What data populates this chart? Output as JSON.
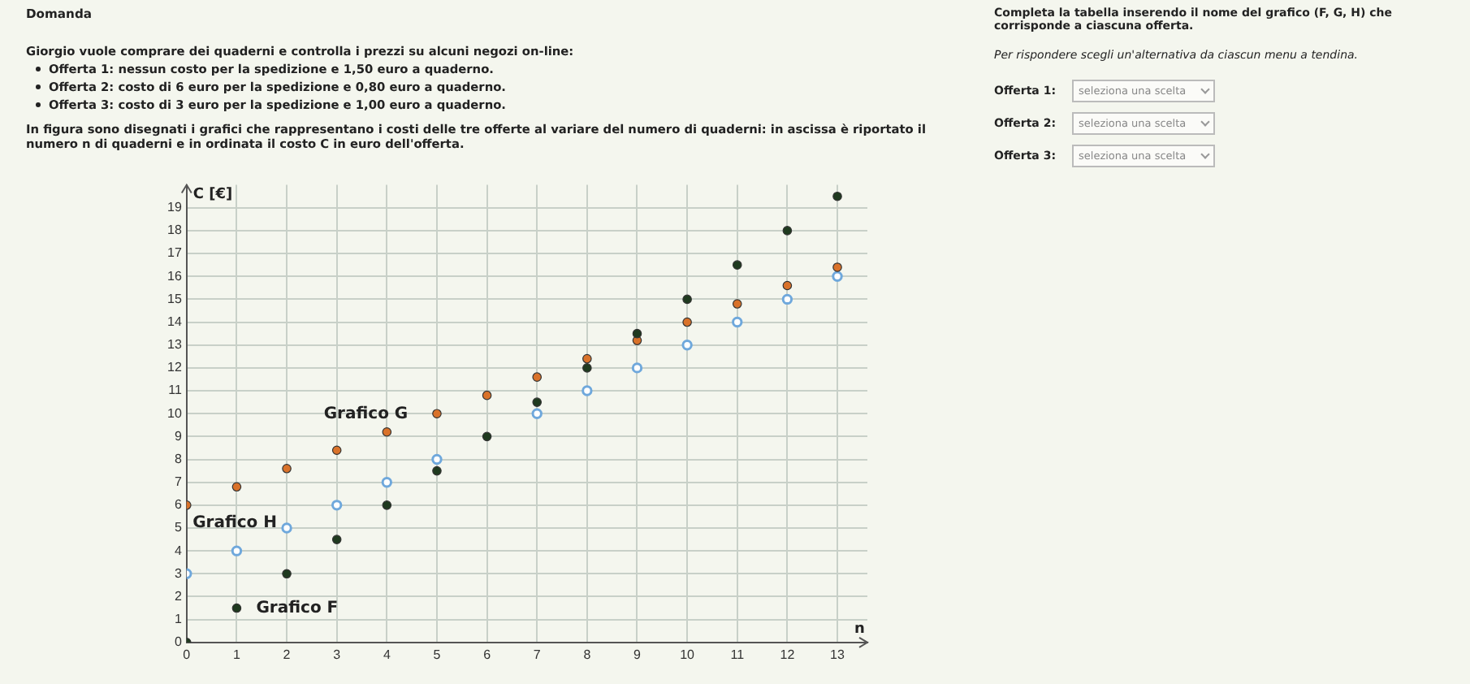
{
  "chart_data": {
    "type": "scatter",
    "title": "Domanda",
    "annotations": [
      "Giorgio vuole comprare dei quaderni e controlla i prezzi su alcuni negozi on-line:",
      "Offerta 1: nessun costo per la spedizione e 1,50 euro a quaderno.",
      "Offerta 2: costo di 6 euro per la spedizione e 0,80 euro a quaderno.",
      "Offerta 3: costo di 3 euro per la spedizione e 1,00 euro a quaderno.",
      "In figura sono disegnati i grafici che rappresentano i costi delle tre offerte al variare del numero di quaderni: in ascissa è riportato il numero n di quaderni e in ordinata il costo C in euro dell'offerta.",
      "Completa la tabella inserendo il nome del grafico (F, G, H) che corrisponde a ciascuna offerta.",
      "Per rispondere scegli un'alternativa da ciascun menu a tendina.",
      "Offerta 1:",
      "Offerta 2:",
      "Offerta 3:",
      "seleziona una scelta",
      "seleziona una scelta",
      "seleziona una scelta"
    ],
    "xlabel": "n",
    "ylabel": "C [€]",
    "x": [
      0,
      1,
      2,
      3,
      4,
      5,
      6,
      7,
      8,
      9,
      10,
      11,
      12,
      13
    ],
    "series": [
      {
        "name": "Grafico F",
        "color": "#1f3a1f",
        "values": [
          0,
          1.5,
          3,
          4.5,
          6,
          7.5,
          9,
          10.5,
          12,
          13.5,
          15,
          16.5,
          18,
          19.5
        ]
      },
      {
        "name": "Grafico G",
        "color": "#d9722a",
        "values": [
          6,
          6.8,
          7.6,
          8.4,
          9.2,
          10,
          10.8,
          11.6,
          12.4,
          13.2,
          14,
          14.8,
          15.6,
          16.4
        ]
      },
      {
        "name": "Grafico H",
        "color": "#6fa8dc",
        "values": [
          3,
          4,
          5,
          6,
          7,
          8,
          null,
          10,
          11,
          12,
          13,
          14,
          15,
          16
        ]
      }
    ],
    "xlim": [
      0,
      13.6
    ],
    "ylim": [
      0,
      20
    ],
    "xticks": [
      0,
      1,
      2,
      3,
      4,
      5,
      6,
      7,
      8,
      9,
      10,
      11,
      12,
      13
    ],
    "yticks": [
      0,
      1,
      2,
      3,
      4,
      5,
      6,
      7,
      8,
      9,
      10,
      11,
      12,
      13,
      14,
      15,
      16,
      17,
      18,
      19
    ],
    "grid": true,
    "legend": false,
    "marker": "circle"
  }
}
